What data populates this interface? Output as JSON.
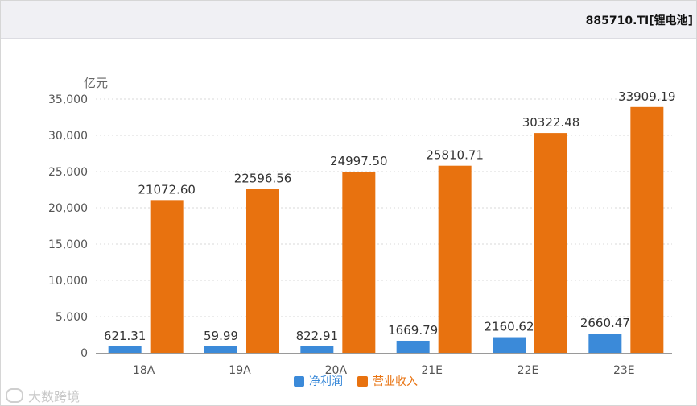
{
  "header": {
    "title": "885710.TI[锂电池]"
  },
  "watermark": {
    "text": "大数跨境"
  },
  "chart_data": {
    "type": "bar",
    "unit_label": "亿元",
    "categories": [
      "18A",
      "19A",
      "20A",
      "21E",
      "22E",
      "23E"
    ],
    "series": [
      {
        "name": "净利润",
        "color": "#3b8ad9",
        "values": [
          621.31,
          59.99,
          822.91,
          1669.79,
          2160.62,
          2660.47
        ],
        "labels": [
          "621.31",
          "59.99",
          "822.91",
          "1669.79",
          "2160.62",
          "2660.47"
        ]
      },
      {
        "name": "营业收入",
        "color": "#e8720f",
        "values": [
          21072.6,
          22596.56,
          24997.5,
          25810.71,
          30322.48,
          33909.19
        ],
        "labels": [
          "21072.60",
          "22596.56",
          "24997.50",
          "25810.71",
          "30322.48",
          "33909.19"
        ]
      }
    ],
    "y_ticks": [
      0,
      5000,
      10000,
      15000,
      20000,
      25000,
      30000,
      35000
    ],
    "y_tick_labels": [
      "0",
      "5,000",
      "10,000",
      "15,000",
      "20,000",
      "25,000",
      "30,000",
      "35,000"
    ],
    "ylim": [
      0,
      35000
    ],
    "grid": true,
    "legend_position": "bottom-center"
  }
}
